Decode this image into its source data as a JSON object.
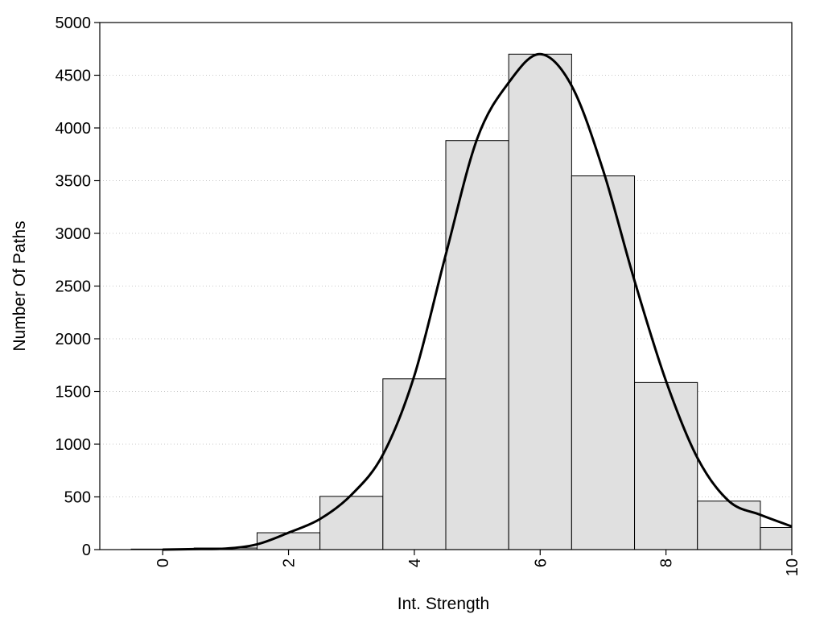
{
  "chart_data": {
    "type": "bar",
    "title": "",
    "xlabel": "Int. Strength",
    "ylabel": "Number Of Paths",
    "xlim": [
      -1,
      10
    ],
    "ylim": [
      0,
      5000
    ],
    "x_ticks": [
      0,
      2,
      4,
      6,
      8,
      10
    ],
    "y_ticks": [
      0,
      500,
      1000,
      1500,
      2000,
      2500,
      3000,
      3500,
      4000,
      4500,
      5000
    ],
    "grid": "horizontal dotted",
    "bar_color": "#e0e0e0",
    "bar_edge_color": "#000000",
    "line_color": "#000000",
    "bars": [
      {
        "x": 0,
        "value": 5
      },
      {
        "x": 1,
        "value": 15
      },
      {
        "x": 2,
        "value": 160
      },
      {
        "x": 3,
        "value": 505
      },
      {
        "x": 4,
        "value": 1620
      },
      {
        "x": 5,
        "value": 3880
      },
      {
        "x": 6,
        "value": 4700
      },
      {
        "x": 7,
        "value": 3545
      },
      {
        "x": 8,
        "value": 1585
      },
      {
        "x": 9,
        "value": 460
      },
      {
        "x": 10,
        "value": 210
      }
    ],
    "density_curve": [
      {
        "x": 0,
        "y": 0
      },
      {
        "x": 0.5,
        "y": 5
      },
      {
        "x": 1,
        "y": 10
      },
      {
        "x": 1.5,
        "y": 50
      },
      {
        "x": 2,
        "y": 160
      },
      {
        "x": 2.5,
        "y": 290
      },
      {
        "x": 3,
        "y": 520
      },
      {
        "x": 3.5,
        "y": 900
      },
      {
        "x": 4,
        "y": 1650
      },
      {
        "x": 4.5,
        "y": 2800
      },
      {
        "x": 5,
        "y": 3900
      },
      {
        "x": 5.5,
        "y": 4430
      },
      {
        "x": 6,
        "y": 4700
      },
      {
        "x": 6.5,
        "y": 4400
      },
      {
        "x": 7,
        "y": 3600
      },
      {
        "x": 7.5,
        "y": 2550
      },
      {
        "x": 8,
        "y": 1600
      },
      {
        "x": 8.5,
        "y": 870
      },
      {
        "x": 9,
        "y": 460
      },
      {
        "x": 9.5,
        "y": 330
      },
      {
        "x": 10,
        "y": 220
      }
    ]
  }
}
